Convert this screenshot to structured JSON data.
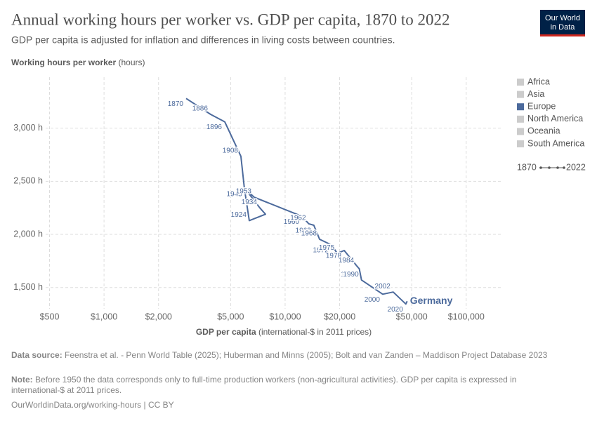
{
  "chart_data": {
    "type": "connected-scatter",
    "title": "Annual working hours per worker vs. GDP per capita, 1870 to 2022",
    "subtitle": "GDP per capita is adjusted for inflation and differences in living costs between countries.",
    "y_label": "Working hours per worker",
    "y_unit": "(hours)",
    "x_label": "GDP per capita",
    "x_unit": "(international-$ in 2011 prices)",
    "logo": [
      "Our World",
      "in Data"
    ],
    "log_x": true,
    "grid": true,
    "xlim": [
      476,
      158000
    ],
    "ylim": [
      1300,
      3480
    ],
    "xticks": [
      {
        "value": 500,
        "label": "$500"
      },
      {
        "value": 1000,
        "label": "$1,000"
      },
      {
        "value": 2000,
        "label": "$2,000"
      },
      {
        "value": 5000,
        "label": "$5,000"
      },
      {
        "value": 10000,
        "label": "$10,000"
      },
      {
        "value": 20000,
        "label": "$20,000"
      },
      {
        "value": 50000,
        "label": "$50,000"
      },
      {
        "value": 100000,
        "label": "$100,000"
      }
    ],
    "yticks": [
      {
        "value": 1500,
        "label": "1,500 h"
      },
      {
        "value": 2000,
        "label": "2,000 h"
      },
      {
        "value": 2500,
        "label": "2,500 h"
      },
      {
        "value": 3000,
        "label": "3,000 h"
      }
    ],
    "legend": [
      {
        "name": "Africa",
        "color": "#cccccc"
      },
      {
        "name": "Asia",
        "color": "#cccccc"
      },
      {
        "name": "Europe",
        "color": "#4c6a9c"
      },
      {
        "name": "North America",
        "color": "#cccccc"
      },
      {
        "name": "Oceania",
        "color": "#cccccc"
      },
      {
        "name": "South America",
        "color": "#cccccc"
      }
    ],
    "time_range": [
      "1870",
      "2022"
    ],
    "series": [
      {
        "name": "Germany",
        "color": "#4c6a9c",
        "x": [
          2840,
          3880,
          4640,
          5700,
          5960,
          6340,
          7790,
          7250,
          6000,
          6750,
          12400,
          13500,
          14400,
          15500,
          18000,
          19400,
          21200,
          24900,
          25700,
          26400,
          34600,
          39500,
          46400,
          47200
        ],
        "y": [
          3280,
          3130,
          3060,
          2735,
          2430,
          2130,
          2190,
          2250,
          2430,
          2350,
          2170,
          2100,
          2086,
          1954,
          1901,
          1821,
          1848,
          1702,
          1675,
          1570,
          1437,
          1457,
          1344,
          1371
        ],
        "point_labels": [
          "1870",
          "1886",
          "1896",
          "1908",
          null,
          "1924",
          null,
          "1934",
          "1945",
          "1953",
          "1960",
          "1962",
          "1963",
          "1968",
          "1972",
          "1975",
          "1978",
          "1984",
          "1986",
          "1990",
          "2000",
          "2002",
          "2020",
          null
        ]
      }
    ],
    "source_label": "Data source:",
    "source": "Feenstra et al. - Penn World Table (2025); Huberman and Minns (2005); Bolt and van Zanden – Maddison Project Database 2023",
    "note_label": "Note:",
    "note": "Before 1950 the data corresponds only to full-time production workers (non-agricultural activities). GDP per capita is expressed in international-$ at 2011 prices.",
    "footer": "OurWorldinData.org/working-hours | CC BY"
  }
}
